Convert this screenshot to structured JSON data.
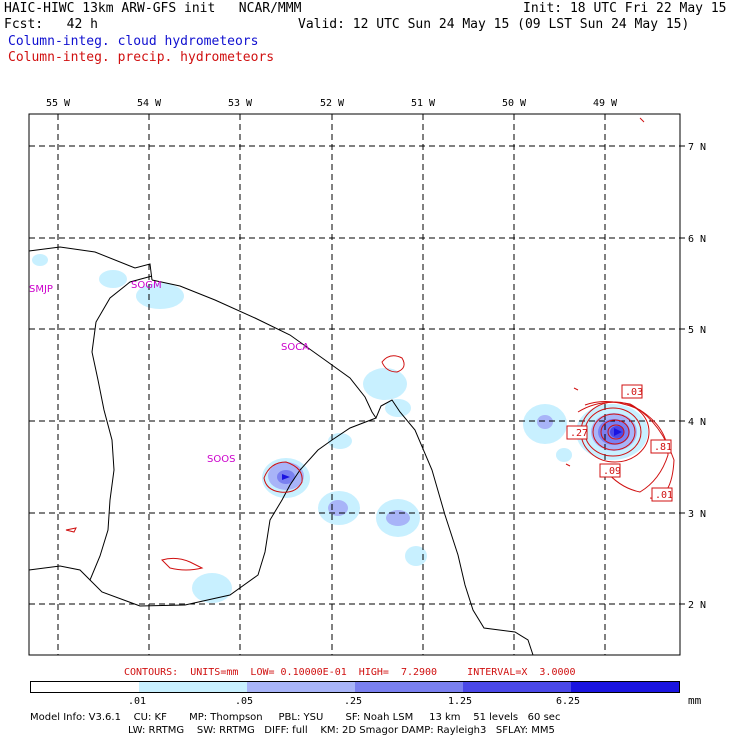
{
  "header": {
    "title": "HAIC-HIWC 13km ARW-GFS init   NCAR/MMM",
    "init": "Init: 18 UTC Fri 22 May 15",
    "fcst": "Fcst:   42 h",
    "valid": "Valid: 12 UTC Sun 24 May 15 (09 LST Sun 24 May 15)",
    "field1": "Column-integ. cloud hydrometeors",
    "field2": "Column-integ. precip. hydrometeors"
  },
  "colors": {
    "cloud_field": "#1010d0",
    "precip_field": "#d01010",
    "levels": [
      "#ffffff",
      "#c8f0ff",
      "#a8b4f8",
      "#7a80f0",
      "#4a48e8",
      "#1a14e0"
    ]
  },
  "axes": {
    "lon_labels": [
      "55 W",
      "54 W",
      "53 W",
      "52 W",
      "51 W",
      "50 W",
      "49 W"
    ],
    "lat_labels": [
      "7 N",
      "6 N",
      "5 N",
      "4 N",
      "3 N",
      "2 N"
    ]
  },
  "stations": [
    "SMJP",
    "SOGM",
    "SOCA",
    "SOOS"
  ],
  "contour_labels": [
    ".03",
    ".27",
    ".81",
    ".09",
    ".01"
  ],
  "contours_line": "CONTOURS:  UNITS=mm  LOW= 0.10000E-01  HIGH=  7.2900     INTERVAL=X  3.0000",
  "legend": {
    "ticks": [
      ".01",
      ".05",
      ".25",
      "1.25",
      "6.25"
    ],
    "unit": "mm"
  },
  "model_info": {
    "line1": "Model Info: V3.6.1    CU: KF       MP: Thompson     PBL: YSU       SF: Noah LSM     13 km    51 levels   60 sec",
    "line2": "LW: RRTMG    SW: RRTMG   DIFF: full    KM: 2D Smagor DAMP: Rayleigh3   SFLAY: MM5"
  }
}
